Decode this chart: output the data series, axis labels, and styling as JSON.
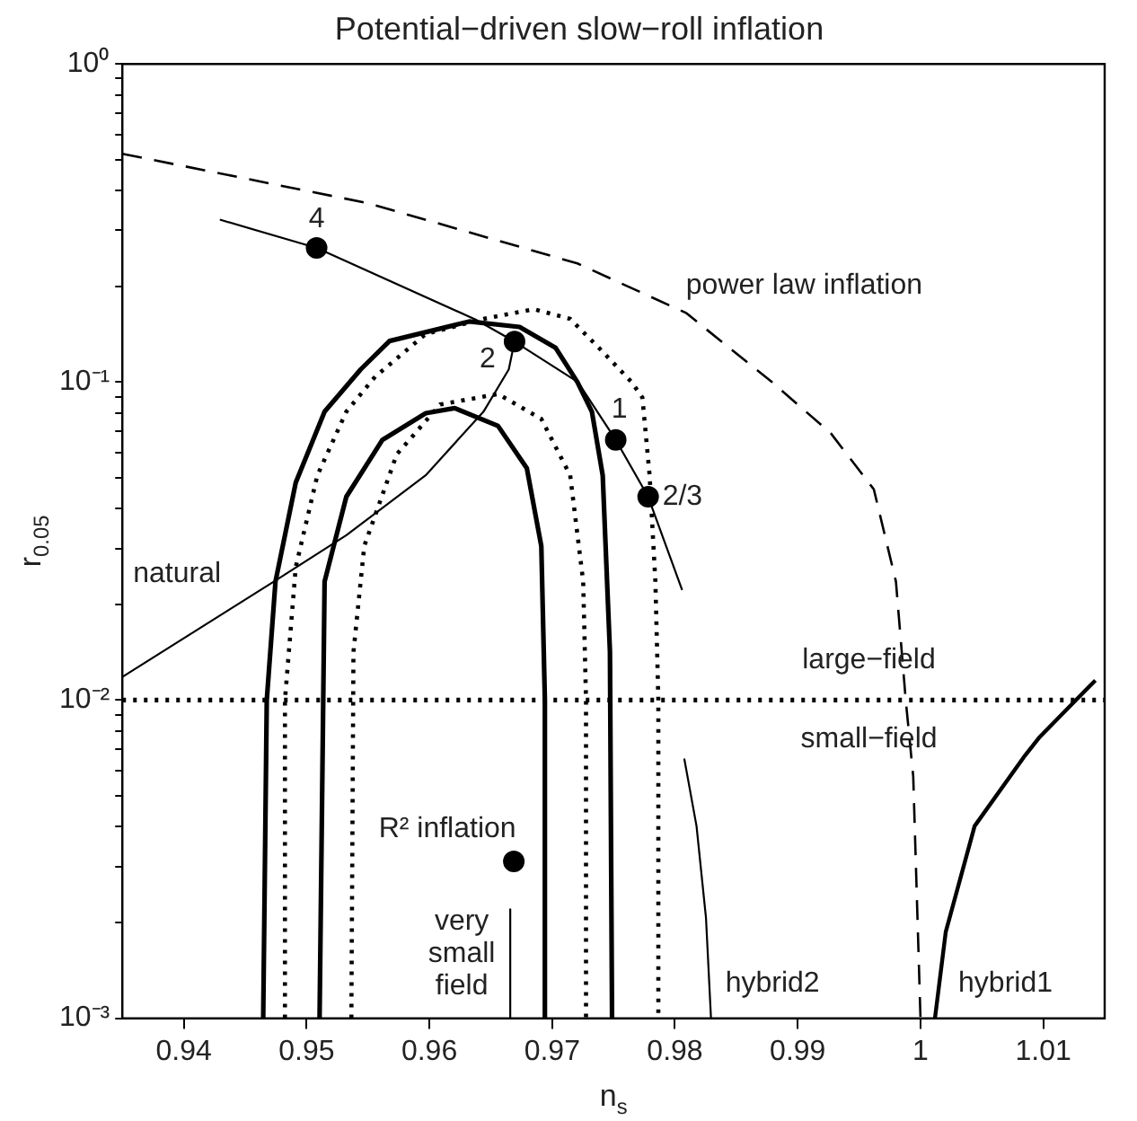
{
  "chart_data": {
    "type": "line",
    "title": "Potential−driven slow−roll inflation",
    "xlabel": "n$_{s}$",
    "ylabel": "r$_{0.05}$",
    "xlim": [
      0.935,
      1.015
    ],
    "xticks": [
      0.94,
      0.95,
      0.96,
      0.97,
      0.98,
      0.99,
      1,
      1.01
    ],
    "ylim": [
      0.001,
      1
    ],
    "log": "y",
    "yticks": [
      {
        "value": 0.001,
        "label": "10⁻³"
      },
      {
        "value": 0.002,
        "label": null
      },
      {
        "value": 0.003,
        "label": null
      },
      {
        "value": 0.004,
        "label": null
      },
      {
        "value": 0.005,
        "label": null
      },
      {
        "value": 0.006,
        "label": null
      },
      {
        "value": 0.007,
        "label": null
      },
      {
        "value": 0.008,
        "label": null
      },
      {
        "value": 0.009,
        "label": null
      },
      {
        "value": 0.01,
        "label": "10⁻²"
      },
      {
        "value": 0.02,
        "label": null
      },
      {
        "value": 0.03,
        "label": null
      },
      {
        "value": 0.04,
        "label": null
      },
      {
        "value": 0.05,
        "label": null
      },
      {
        "value": 0.06,
        "label": null
      },
      {
        "value": 0.07,
        "label": null
      },
      {
        "value": 0.08,
        "label": null
      },
      {
        "value": 0.09,
        "label": null
      },
      {
        "value": 0.1,
        "label": "10⁻¹"
      },
      {
        "value": 0.2,
        "label": null
      },
      {
        "value": 0.3,
        "label": null
      },
      {
        "value": 0.4,
        "label": null
      },
      {
        "value": 0.5,
        "label": null
      },
      {
        "value": 0.6,
        "label": null
      },
      {
        "value": 0.7,
        "label": null
      },
      {
        "value": 0.8,
        "label": null
      },
      {
        "value": 0.9,
        "label": null
      },
      {
        "value": 1,
        "label": "10⁰"
      }
    ],
    "grid": false,
    "legend": false,
    "marker": "circle",
    "series": [
      {
        "name": "power law inflation",
        "color": "#000000",
        "line_style": "dashed",
        "marker": "none",
        "x": [
          0.935,
          0.955,
          0.97206,
          0.9809,
          0.9879,
          0.9927,
          0.9962,
          0.998,
          0.9988,
          0.99941,
          1.0
        ],
        "values": [
          0.522,
          0.365,
          0.236,
          0.165,
          0.1,
          0.069,
          0.046,
          0.0236,
          0.01,
          0.00575,
          0.001
        ]
      },
      {
        "color": "#000000",
        "line_style": "solid",
        "marker": "none",
        "x": [
          0.94294,
          0.95082,
          0.9638,
          0.96694,
          0.9721,
          0.97518,
          0.97782,
          0.98059
        ],
        "values": [
          0.324,
          0.264,
          0.157,
          0.134,
          0.1,
          0.0658,
          0.0436,
          0.0222
        ]
      },
      {
        "name": "natural",
        "color": "#000000",
        "line_style": "solid",
        "marker": "none",
        "x": [
          0.935,
          0.94735,
          0.95324,
          0.9597,
          0.96441,
          0.96647,
          0.96694
        ],
        "values": [
          0.01183,
          0.0236,
          0.033,
          0.0509,
          0.0807,
          0.1096,
          0.134
        ]
      },
      {
        "name": "hybrid2",
        "color": "#000000",
        "line_style": "solid",
        "marker": "none",
        "x": [
          0.98076,
          0.98176,
          0.98253,
          0.98294
        ],
        "values": [
          0.00655,
          0.00402,
          0.00207,
          0.001
        ]
      },
      {
        "name": "hybrid1",
        "color": "#000000",
        "line_style": "solid",
        "marker": "none",
        "x": [
          1.00118,
          1.00206,
          1.00441,
          1.00853,
          1.00971,
          1.01265,
          1.01424
        ],
        "values": [
          0.001,
          0.00187,
          0.00402,
          0.00671,
          0.00766,
          0.01,
          0.01154
        ]
      },
      {
        "name": "very small field",
        "color": "#000000",
        "line_style": "solid",
        "marker": "none",
        "x": [
          0.96659,
          0.96659
        ],
        "values": [
          0.0022,
          0.001
        ]
      },
      {
        "color": "#000000",
        "line_style": "solid",
        "marker": "none",
        "x": [
          0.94647,
          0.94676,
          0.94747,
          0.94912,
          0.95147,
          0.95441,
          0.95676,
          0.96324,
          0.96735,
          0.97029,
          0.97206,
          0.97324,
          0.97412,
          0.97471,
          0.97488
        ],
        "values": [
          0.001,
          0.01,
          0.0236,
          0.0483,
          0.0807,
          0.1096,
          0.1346,
          0.155,
          0.149,
          0.128,
          0.1,
          0.0807,
          0.0509,
          0.01416,
          0.001
        ]
      },
      {
        "color": "#000000",
        "line_style": "solid",
        "marker": "none",
        "x": [
          0.95106,
          0.95147,
          0.95324,
          0.95618,
          0.95971,
          0.96206,
          0.96559,
          0.96794,
          0.96912,
          0.96941,
          0.96941
        ],
        "values": [
          0.001,
          0.0236,
          0.0436,
          0.0658,
          0.0798,
          0.0828,
          0.0728,
          0.0536,
          0.0305,
          0.01,
          0.001
        ]
      },
      {
        "color": "#000000",
        "line_style": "dotted",
        "marker": "none",
        "x": [
          0.94824,
          0.94824,
          0.94912,
          0.95088,
          0.95324,
          0.95559,
          0.95971,
          0.96441,
          0.96853,
          0.97147,
          0.97382,
          0.97647,
          0.97735,
          0.97794,
          0.97841,
          0.97865,
          0.97865
        ],
        "values": [
          0.001,
          0.01,
          0.0262,
          0.0509,
          0.0807,
          0.104,
          0.1416,
          0.158,
          0.1694,
          0.158,
          0.128,
          0.1,
          0.0894,
          0.0509,
          0.0236,
          0.01,
          0.001
        ]
      },
      {
        "color": "#000000",
        "line_style": "dotted",
        "marker": "none",
        "x": [
          0.95365,
          0.95382,
          0.9547,
          0.95735,
          0.96088,
          0.96559,
          0.96912,
          0.97147,
          0.97253,
          0.97276,
          0.97276
        ],
        "values": [
          0.001,
          0.01416,
          0.0305,
          0.0593,
          0.085,
          0.0917,
          0.0766,
          0.0509,
          0.0236,
          0.01,
          0.001
        ]
      },
      {
        "type": "scatter",
        "name": "4",
        "color": "#000000",
        "x": [
          0.95082
        ],
        "values": [
          0.264
        ]
      },
      {
        "type": "scatter",
        "name": "2",
        "color": "#000000",
        "x": [
          0.96694
        ],
        "values": [
          0.134
        ]
      },
      {
        "type": "scatter",
        "name": "1",
        "color": "#000000",
        "x": [
          0.97518
        ],
        "values": [
          0.0658
        ]
      },
      {
        "type": "scatter",
        "name": "2/3",
        "color": "#000000",
        "x": [
          0.97782
        ],
        "values": [
          0.0436
        ]
      },
      {
        "type": "scatter",
        "name": "R² inflation",
        "color": "#000000",
        "x": [
          0.96688
        ],
        "values": [
          0.00311
        ]
      }
    ],
    "ref_lines": [
      {
        "axis": "y",
        "value": 0.01,
        "line_style": "dotted",
        "color": "#000000"
      }
    ],
    "annotations": [
      "large−field",
      "small−field"
    ]
  }
}
